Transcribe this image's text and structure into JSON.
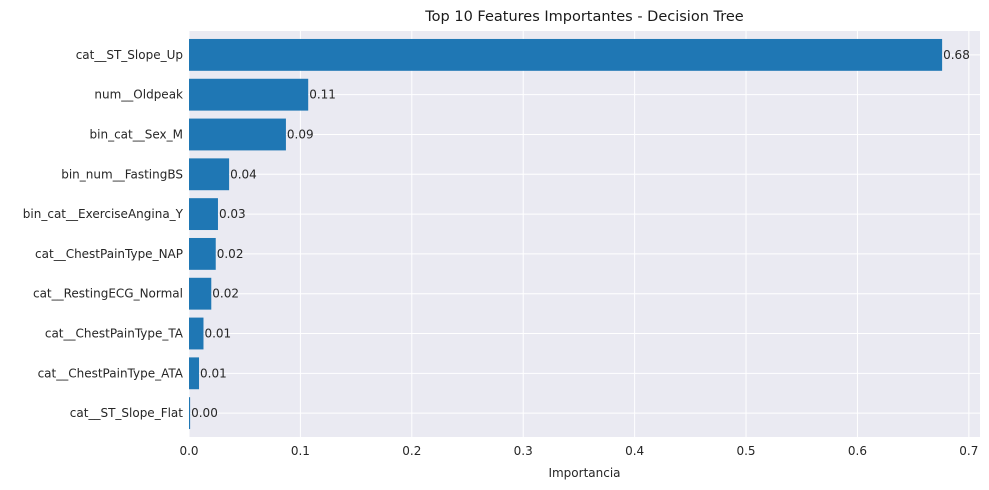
{
  "chart_data": {
    "type": "bar",
    "orientation": "horizontal",
    "title": "Top 10 Features Importantes - Decision Tree",
    "xlabel": "Importancia",
    "ylabel": "",
    "xlim": [
      0,
      0.71
    ],
    "xticks": [
      0.0,
      0.1,
      0.2,
      0.3,
      0.4,
      0.5,
      0.6,
      0.7
    ],
    "xtick_labels": [
      "0.0",
      "0.1",
      "0.2",
      "0.3",
      "0.4",
      "0.5",
      "0.6",
      "0.7"
    ],
    "grid": true,
    "categories": [
      "cat__ST_Slope_Up",
      "num__Oldpeak",
      "bin_cat__Sex_M",
      "bin_num__FastingBS",
      "bin_cat__ExerciseAngina_Y",
      "cat__ChestPainType_NAP",
      "cat__RestingECG_Normal",
      "cat__ChestPainType_TA",
      "cat__ChestPainType_ATA",
      "cat__ST_Slope_Flat"
    ],
    "values": [
      0.676,
      0.107,
      0.087,
      0.036,
      0.026,
      0.024,
      0.02,
      0.013,
      0.009,
      0.001
    ],
    "value_labels": [
      "0.68",
      "0.11",
      "0.09",
      "0.04",
      "0.03",
      "0.02",
      "0.02",
      "0.01",
      "0.01",
      "0.00"
    ],
    "colors": {
      "bar": "#1f77b4",
      "plot_background": "#eaeaf2",
      "grid": "#ffffff"
    }
  }
}
